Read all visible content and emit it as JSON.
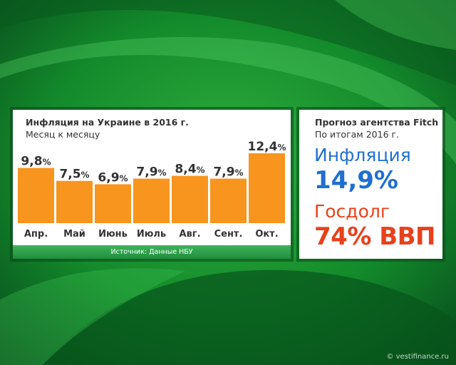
{
  "colors": {
    "bar": "#f7951e",
    "bar_text": "#333333",
    "inflation": "#1f6fd0",
    "debt": "#e8411c",
    "source_bar": "#2ea24a"
  },
  "chart_data": {
    "type": "bar",
    "title": "Инфляция на Украине в 2016 г.",
    "subtitle": "Месяц к месяцу",
    "categories": [
      "Апр.",
      "Май",
      "Июнь",
      "Июль",
      "Авг.",
      "Сент.",
      "Окт."
    ],
    "values": [
      9.8,
      7.5,
      6.9,
      7.9,
      8.4,
      7.9,
      12.4
    ],
    "value_labels": [
      "9,8",
      "7,5",
      "6,9",
      "7,9",
      "8,4",
      "7,9",
      "12,4"
    ],
    "value_suffix": "%",
    "ylim": [
      0,
      12.4
    ],
    "grid": false,
    "legend": "none"
  },
  "source": "Источник: Данные НБУ",
  "fitch": {
    "title": "Прогноз агентства Fitch",
    "subtitle": "По итогам 2016 г.",
    "inflation_label": "Инфляция",
    "inflation_value": "14,9%",
    "debt_label": "Госдолг",
    "debt_value": "74% ВВП"
  },
  "watermark": "© vestifinance.ru"
}
